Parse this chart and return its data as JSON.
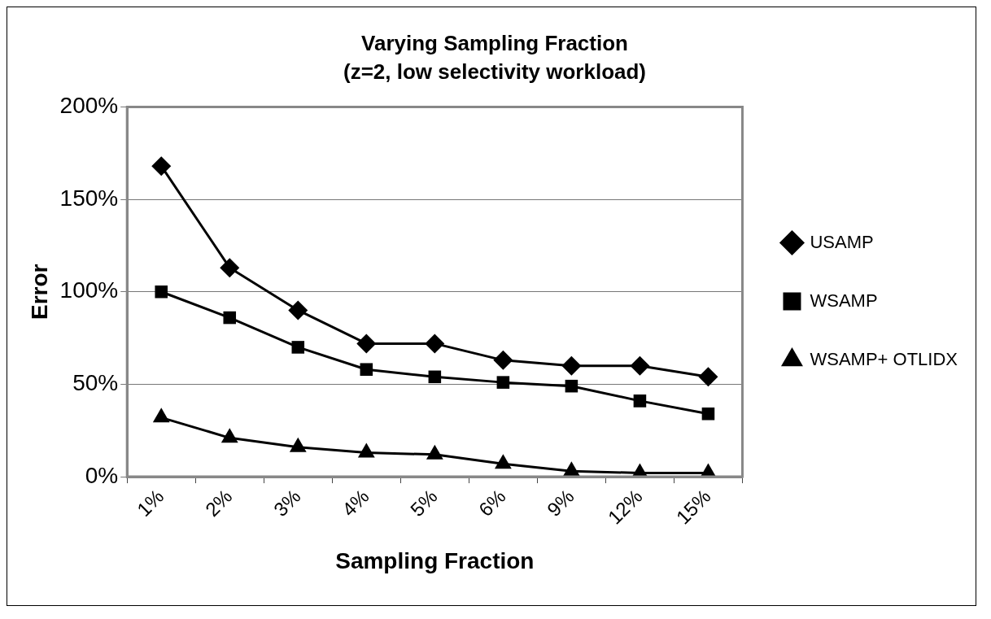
{
  "chart_data": {
    "type": "line",
    "title": "Varying Sampling Fraction",
    "subtitle": "(z=2, low selectivity workload)",
    "xlabel": "Sampling Fraction",
    "ylabel": "Error",
    "categories": [
      "1%",
      "2%",
      "3%",
      "4%",
      "5%",
      "6%",
      "9%",
      "12%",
      "15%"
    ],
    "ylim": [
      0,
      200
    ],
    "yticks": [
      {
        "value": 0,
        "label": "0%"
      },
      {
        "value": 50,
        "label": "50%"
      },
      {
        "value": 100,
        "label": "100%"
      },
      {
        "value": 150,
        "label": "150%"
      },
      {
        "value": 200,
        "label": "200%"
      }
    ],
    "grid": "y",
    "legend": "right",
    "line_style": "solid",
    "series": [
      {
        "name": "USAMP",
        "color": "#000000",
        "marker": "diamond",
        "values": [
          168,
          113,
          90,
          72,
          72,
          63,
          60,
          60,
          54
        ]
      },
      {
        "name": "WSAMP",
        "color": "#000000",
        "marker": "square",
        "values": [
          100,
          86,
          70,
          58,
          54,
          51,
          49,
          41,
          34
        ]
      },
      {
        "name": "WSAMP+ OTLIDX",
        "color": "#000000",
        "marker": "triangle",
        "values": [
          32,
          21,
          16,
          13,
          12,
          7,
          3,
          2,
          2
        ]
      }
    ]
  }
}
